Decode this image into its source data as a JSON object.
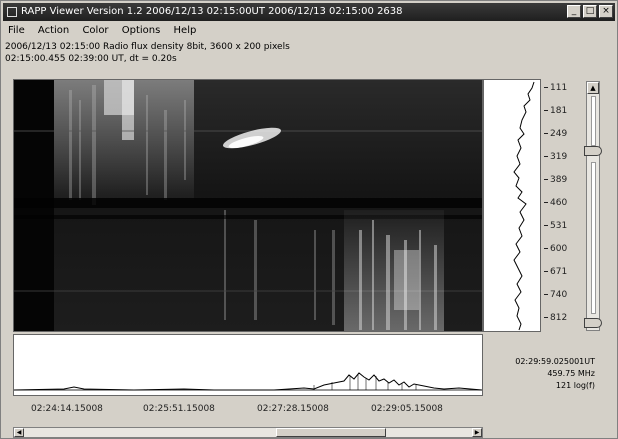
{
  "window": {
    "title": "RAPP Viewer Version 1.2 2006/12/13 02:15:00UT  2006/12/13 02:15:00  2638",
    "min_glyph": "_",
    "max_glyph": "□",
    "close_glyph": "×"
  },
  "menu": [
    "File",
    "Action",
    "Color",
    "Options",
    "Help"
  ],
  "info": {
    "line1": "2006/12/13 02:15:00 Radio flux density 8bit, 3600 x 200 pixels",
    "line2": "02:15:00.455 02:39:00 UT, dt = 0.20s"
  },
  "spectrum": {
    "y_ticks": [
      "111",
      "181",
      "249",
      "319",
      "389",
      "460",
      "531",
      "600",
      "671",
      "740",
      "812"
    ]
  },
  "lightcurve": {
    "x_ticks": [
      "02:24:14.15008",
      "02:25:51.15008",
      "02:27:28.15008",
      "02:29:05.15008"
    ]
  },
  "readout": {
    "time": "02:29:59.025001UT",
    "freq": "459.75 MHz",
    "value": "121 log(f)"
  },
  "icons": {
    "up": "arrow-up-icon",
    "down": "arrow-down-icon",
    "left": "arrow-left-icon",
    "right": "arrow-right-icon"
  }
}
